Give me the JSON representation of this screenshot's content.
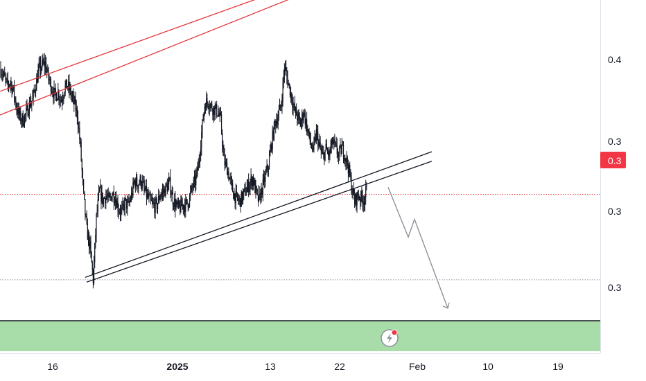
{
  "chart_data": {
    "type": "candlestick",
    "x_ticks": [
      {
        "label": "16",
        "bold": false
      },
      {
        "label": "2025",
        "bold": true
      },
      {
        "label": "13",
        "bold": false
      },
      {
        "label": "22",
        "bold": false
      },
      {
        "label": "Feb",
        "bold": false
      },
      {
        "label": "10",
        "bold": false
      },
      {
        "label": "19",
        "bold": false
      }
    ],
    "y_ticks": [
      "0.4",
      "0.3",
      "0.3"
    ],
    "price_badges": [
      {
        "label": "0.3",
        "style": "outline",
        "color": "#131722"
      },
      {
        "label": "0.3",
        "style": "filled",
        "color": "#f23645"
      }
    ],
    "price_series": [
      0.412,
      0.405,
      0.398,
      0.401,
      0.393,
      0.379,
      0.371,
      0.369,
      0.374,
      0.382,
      0.386,
      0.399,
      0.411,
      0.415,
      0.416,
      0.404,
      0.396,
      0.389,
      0.392,
      0.385,
      0.396,
      0.398,
      0.391,
      0.383,
      0.374,
      0.346,
      0.304,
      0.276,
      0.261,
      0.234,
      0.286,
      0.309,
      0.301,
      0.305,
      0.3,
      0.307,
      0.303,
      0.294,
      0.291,
      0.299,
      0.296,
      0.305,
      0.317,
      0.315,
      0.318,
      0.31,
      0.304,
      0.299,
      0.296,
      0.297,
      0.306,
      0.308,
      0.312,
      0.315,
      0.302,
      0.296,
      0.294,
      0.297,
      0.297,
      0.301,
      0.311,
      0.317,
      0.33,
      0.358,
      0.382,
      0.385,
      0.38,
      0.378,
      0.376,
      0.368,
      0.334,
      0.328,
      0.317,
      0.307,
      0.302,
      0.3,
      0.305,
      0.31,
      0.315,
      0.32,
      0.308,
      0.3,
      0.311,
      0.321,
      0.331,
      0.35,
      0.366,
      0.372,
      0.382,
      0.414,
      0.402,
      0.391,
      0.378,
      0.372,
      0.365,
      0.376,
      0.363,
      0.351,
      0.342,
      0.358,
      0.346,
      0.337,
      0.344,
      0.339,
      0.35,
      0.345,
      0.339,
      0.345,
      0.339,
      0.329,
      0.313,
      0.3,
      0.305,
      0.303,
      0.302,
      0.312
    ],
    "projection": [
      0.312,
      0.27,
      0.285,
      0.21
    ],
    "channel_upper": [
      [
        0,
        0.393,
        92,
        0.482
      ],
      [
        0,
        0.373,
        92,
        0.472
      ]
    ],
    "support_lines": [
      [
        16,
        0.236,
        80,
        0.342
      ],
      [
        16,
        0.232,
        80,
        0.334
      ]
    ],
    "levels": {
      "dotted_red": 0.306,
      "dotted_gray": 0.234
    },
    "y_range": [
      0.2,
      0.47
    ],
    "grid": false,
    "colors": {
      "resistance": "#e5343a",
      "support": "#131722",
      "dotted_red": "#e5343a",
      "dotted_gray": "#9598a1",
      "projection": "#8c9099",
      "volume_band": "#a8dca8",
      "volume_border": "#131722",
      "candles": "#131722"
    },
    "icon": "lightning-bolt-icon"
  }
}
